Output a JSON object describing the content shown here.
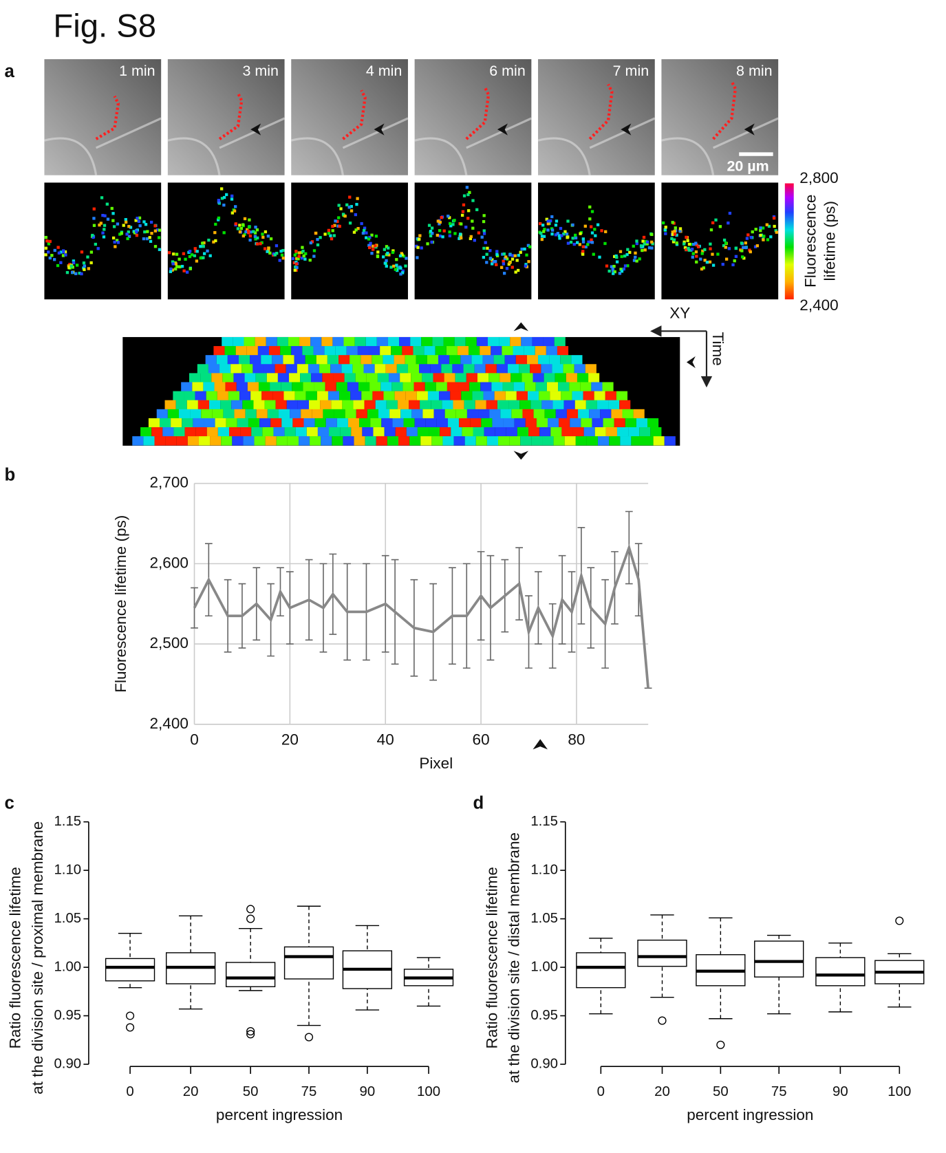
{
  "figure": {
    "title": "Fig. S8",
    "panel_labels": [
      "a",
      "b",
      "c",
      "d"
    ],
    "timepoints": [
      "1 min",
      "3 min",
      "4 min",
      "6 min",
      "7 min",
      "8 min"
    ],
    "scale_bar": "20 µm",
    "colorbar": {
      "max_label": "2,800",
      "min_label": "2,400",
      "title_1": "Fluorescence",
      "title_2": "lifetime (ps)"
    },
    "kymograph_axes": [
      "XY",
      "Time"
    ]
  },
  "chart_data": [
    {
      "type": "line",
      "x_label": "Pixel",
      "y_label": "Fluorescence lifetime (ps)",
      "x": [
        0,
        3,
        7,
        10,
        13,
        16,
        18,
        20,
        24,
        27,
        29,
        32,
        36,
        40,
        42,
        46,
        50,
        54,
        57,
        60,
        62,
        65,
        68,
        70,
        72,
        75,
        77,
        79,
        81,
        83,
        86,
        88,
        91,
        93,
        95
      ],
      "series": [
        {
          "color": "#888888",
          "values": [
            2545,
            2580,
            2535,
            2535,
            2550,
            2530,
            2565,
            2545,
            2555,
            2545,
            2562,
            2540,
            2540,
            2550,
            2540,
            2520,
            2515,
            2535,
            2535,
            2560,
            2545,
            2560,
            2575,
            2515,
            2545,
            2510,
            2555,
            2540,
            2585,
            2545,
            2525,
            2570,
            2620,
            2580,
            2445
          ],
          "errors": [
            25,
            45,
            45,
            40,
            45,
            45,
            30,
            45,
            50,
            55,
            50,
            60,
            60,
            60,
            65,
            60,
            60,
            60,
            65,
            55,
            65,
            45,
            45,
            45,
            45,
            40,
            55,
            50,
            60,
            50,
            55,
            45,
            45,
            45,
            0
          ]
        }
      ],
      "xlim": [
        0,
        95
      ],
      "xticks": [
        0,
        20,
        40,
        60,
        80
      ],
      "ylim": [
        2400,
        2700
      ],
      "yticks": [
        {
          "value": 2400,
          "label": "2,400"
        },
        {
          "value": 2500,
          "label": "2,500"
        },
        {
          "value": 2600,
          "label": "2,600"
        },
        {
          "value": 2700,
          "label": "2,700"
        }
      ],
      "grid": true
    },
    {
      "type": "box",
      "x_label": "percent ingression",
      "y_label": [
        "Ratio fluorescence lifetime",
        "at the division site / proximal membrane"
      ],
      "categories": [
        "0",
        "20",
        "50",
        "75",
        "90",
        "100"
      ],
      "boxes": [
        {
          "whisker_low": 0.979,
          "q1": 0.986,
          "median": 1.0,
          "q3": 1.009,
          "whisker_high": 1.035,
          "outliers": [
            0.95,
            0.938
          ]
        },
        {
          "whisker_low": 0.957,
          "q1": 0.983,
          "median": 1.0,
          "q3": 1.015,
          "whisker_high": 1.053,
          "outliers": []
        },
        {
          "whisker_low": 0.976,
          "q1": 0.98,
          "median": 0.989,
          "q3": 1.005,
          "whisker_high": 1.04,
          "outliers": [
            1.06,
            1.05,
            0.934,
            0.931
          ]
        },
        {
          "whisker_low": 0.94,
          "q1": 0.988,
          "median": 1.011,
          "q3": 1.021,
          "whisker_high": 1.063,
          "outliers": [
            0.928
          ]
        },
        {
          "whisker_low": 0.956,
          "q1": 0.978,
          "median": 0.998,
          "q3": 1.017,
          "whisker_high": 1.043,
          "outliers": []
        },
        {
          "whisker_low": 0.96,
          "q1": 0.981,
          "median": 0.989,
          "q3": 0.998,
          "whisker_high": 1.01,
          "outliers": []
        }
      ],
      "ylim": [
        0.9,
        1.15
      ],
      "yticks": [
        {
          "value": 0.9,
          "label": "0.90"
        },
        0.95,
        {
          "value": 1.0,
          "label": "1.00"
        },
        1.05,
        {
          "value": 1.1,
          "label": "1.10"
        },
        1.15
      ]
    },
    {
      "type": "box",
      "x_label": "percent ingression",
      "y_label": [
        "Ratio fluorescence lifetime",
        "at the division site / distal membrane"
      ],
      "categories": [
        "0",
        "20",
        "50",
        "75",
        "90",
        "100"
      ],
      "boxes": [
        {
          "whisker_low": 0.952,
          "q1": 0.979,
          "median": 1.0,
          "q3": 1.015,
          "whisker_high": 1.03,
          "outliers": []
        },
        {
          "whisker_low": 0.969,
          "q1": 1.001,
          "median": 1.011,
          "q3": 1.028,
          "whisker_high": 1.054,
          "outliers": [
            0.945
          ]
        },
        {
          "whisker_low": 0.947,
          "q1": 0.981,
          "median": 0.996,
          "q3": 1.013,
          "whisker_high": 1.051,
          "outliers": [
            0.92
          ]
        },
        {
          "whisker_low": 0.952,
          "q1": 0.99,
          "median": 1.006,
          "q3": 1.027,
          "whisker_high": 1.033,
          "outliers": []
        },
        {
          "whisker_low": 0.954,
          "q1": 0.981,
          "median": 0.992,
          "q3": 1.01,
          "whisker_high": 1.025,
          "outliers": []
        },
        {
          "whisker_low": 0.959,
          "q1": 0.983,
          "median": 0.995,
          "q3": 1.007,
          "whisker_high": 1.014,
          "outliers": [
            1.048
          ]
        }
      ],
      "ylim": [
        0.9,
        1.15
      ],
      "yticks": [
        {
          "value": 0.9,
          "label": "0.90"
        },
        0.95,
        {
          "value": 1.0,
          "label": "1.00"
        },
        1.05,
        {
          "value": 1.1,
          "label": "1.10"
        },
        1.15
      ]
    }
  ]
}
